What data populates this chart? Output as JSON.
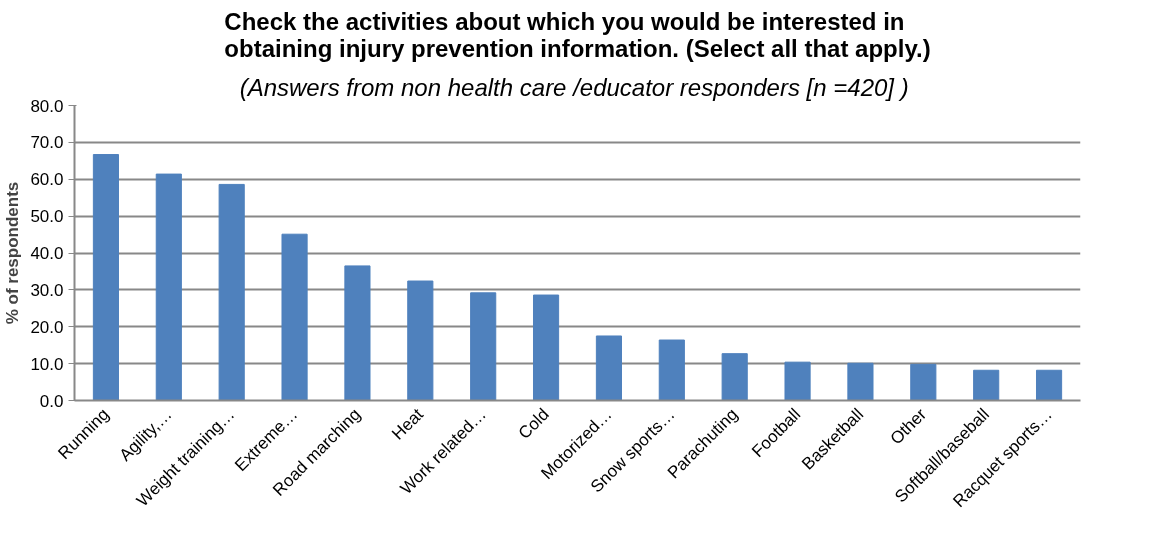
{
  "chart_data": {
    "type": "bar",
    "title": "Check the activities about which you would be interested in\nobtaining injury prevention information. (Select all that apply.)",
    "subtitle": "(Answers from  non health care /educator responders [n =420] )",
    "ylabel": "% of respondents",
    "categories": [
      "Running",
      "Agility,…",
      "Weight training…",
      "Extreme…",
      "Road marching",
      "Heat",
      "Work related…",
      "Cold",
      "Motorized…",
      "Snow sports…",
      "Parachuting",
      "Football",
      "Basketball",
      "Other",
      "Softball/baseball",
      "Racquet sports…"
    ],
    "values": [
      66.7,
      61.4,
      58.6,
      45.1,
      36.5,
      32.4,
      29.2,
      28.6,
      17.5,
      16.4,
      12.7,
      10.4,
      10.1,
      9.8,
      8.2,
      8.2
    ],
    "color": "#4f81bd",
    "ylim": [
      0,
      80
    ],
    "yticks": [
      {
        "value": 0,
        "label": "0.0"
      },
      {
        "value": 10,
        "label": "10.0"
      },
      {
        "value": 20,
        "label": "20.0"
      },
      {
        "value": 30,
        "label": "30.0"
      },
      {
        "value": 40,
        "label": "40.0"
      },
      {
        "value": 50,
        "label": "50.0"
      },
      {
        "value": 60,
        "label": "60.0"
      },
      {
        "value": 70,
        "label": "70.0"
      },
      {
        "value": 80,
        "label": "80.0"
      }
    ],
    "grid": "y"
  }
}
